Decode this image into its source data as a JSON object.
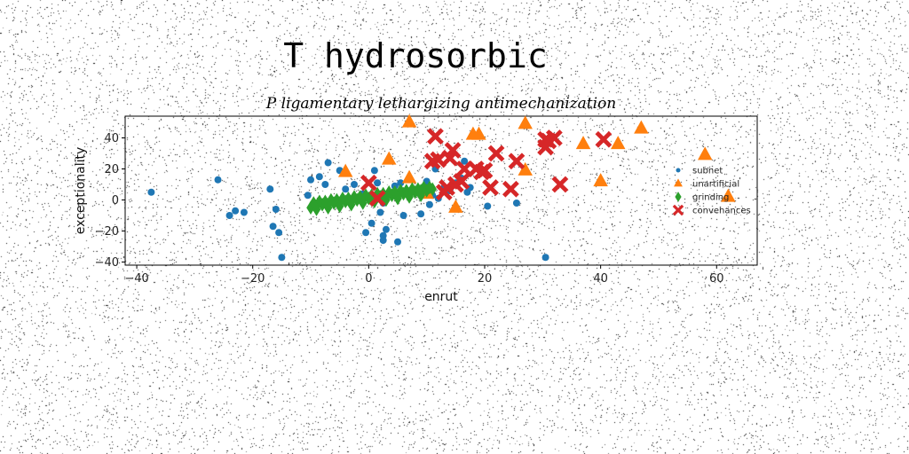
{
  "chart_data": {
    "type": "scatter",
    "suptitle": "T hydrosorbic",
    "title": "P ligamentary lethargizing antimechanization",
    "xlabel": "enrut",
    "ylabel": "exceptionality",
    "xlim": [
      -42,
      67
    ],
    "ylim": [
      -42,
      54
    ],
    "xticks": [
      -40,
      -20,
      0,
      20,
      40,
      60
    ],
    "yticks": [
      -40,
      -20,
      0,
      20,
      40
    ],
    "xtick_labels": [
      "−40",
      "−20",
      "0",
      "20",
      "40",
      "60"
    ],
    "ytick_labels": [
      "−40",
      "−20",
      "0",
      "20",
      "40"
    ],
    "legend_position": "right",
    "series": [
      {
        "name": "subnet",
        "marker": "circle",
        "color": "#1f77b4",
        "points": [
          [
            -37.5,
            5
          ],
          [
            -26,
            13
          ],
          [
            -24,
            -10
          ],
          [
            -23,
            -7
          ],
          [
            -21.5,
            -8
          ],
          [
            -17,
            7
          ],
          [
            -16.5,
            -17
          ],
          [
            -16,
            -6
          ],
          [
            -15.5,
            -21
          ],
          [
            -15,
            -37
          ],
          [
            -10.5,
            3
          ],
          [
            -10,
            13
          ],
          [
            -8.5,
            15
          ],
          [
            -7.5,
            10
          ],
          [
            -7,
            24
          ],
          [
            -5,
            19
          ],
          [
            -4,
            7
          ],
          [
            -2.5,
            10
          ],
          [
            -1,
            4
          ],
          [
            -0.5,
            -21
          ],
          [
            0.5,
            -15
          ],
          [
            1,
            19
          ],
          [
            1.5,
            11
          ],
          [
            2,
            -8
          ],
          [
            2.5,
            -2
          ],
          [
            2.5,
            -23
          ],
          [
            2.5,
            -26
          ],
          [
            3,
            -19
          ],
          [
            4,
            3
          ],
          [
            4.5,
            9
          ],
          [
            5,
            -27
          ],
          [
            5.5,
            11
          ],
          [
            6,
            -10
          ],
          [
            7,
            3
          ],
          [
            8,
            6
          ],
          [
            8.5,
            5
          ],
          [
            9,
            -9
          ],
          [
            10,
            12
          ],
          [
            10.5,
            -3
          ],
          [
            11,
            3
          ],
          [
            11.5,
            20
          ],
          [
            12,
            1
          ],
          [
            13,
            8
          ],
          [
            14,
            6
          ],
          [
            15,
            11
          ],
          [
            16,
            14
          ],
          [
            16.5,
            25
          ],
          [
            17,
            5
          ],
          [
            17.5,
            8
          ],
          [
            20.5,
            -4
          ],
          [
            25.5,
            -2
          ],
          [
            30.5,
            -37
          ]
        ]
      },
      {
        "name": "unartificial",
        "marker": "triangle",
        "color": "#ff7f0e",
        "points": [
          [
            -4,
            18
          ],
          [
            3.5,
            26
          ],
          [
            7,
            50
          ],
          [
            7,
            14
          ],
          [
            10,
            4
          ],
          [
            15,
            -5
          ],
          [
            18,
            42
          ],
          [
            19,
            42
          ],
          [
            27,
            49
          ],
          [
            27,
            19
          ],
          [
            37,
            36
          ],
          [
            40,
            12
          ],
          [
            43,
            36
          ],
          [
            47,
            46
          ],
          [
            58,
            29
          ],
          [
            62,
            2
          ]
        ]
      },
      {
        "name": "grinding",
        "marker": "diamond",
        "color": "#2ca02c",
        "points": [
          [
            -10,
            -5
          ],
          [
            -9,
            -4
          ],
          [
            -8,
            -3
          ],
          [
            -7,
            -3
          ],
          [
            -6,
            -2
          ],
          [
            -5,
            -2
          ],
          [
            -4,
            -1
          ],
          [
            -3,
            -1
          ],
          [
            -2,
            0
          ],
          [
            -1,
            0
          ],
          [
            0,
            1
          ],
          [
            1,
            1
          ],
          [
            2,
            2
          ],
          [
            3,
            2
          ],
          [
            4,
            3
          ],
          [
            5,
            3
          ],
          [
            6,
            4
          ],
          [
            7,
            4
          ],
          [
            8,
            5
          ],
          [
            9,
            6
          ],
          [
            10,
            6
          ],
          [
            11,
            7
          ],
          [
            -9.5,
            -2
          ],
          [
            -8.5,
            -1
          ],
          [
            -7.5,
            -1
          ],
          [
            -6.5,
            0
          ],
          [
            -5.5,
            0
          ],
          [
            -4.5,
            1
          ],
          [
            -3.5,
            1
          ],
          [
            -2.5,
            2
          ],
          [
            -1.5,
            2
          ],
          [
            -0.5,
            3
          ],
          [
            0.5,
            3
          ],
          [
            1.5,
            4
          ],
          [
            2.5,
            4
          ],
          [
            3.5,
            5
          ],
          [
            4.5,
            5
          ],
          [
            5.5,
            6
          ],
          [
            6.5,
            6
          ],
          [
            7.5,
            7
          ],
          [
            8.5,
            7
          ],
          [
            9.5,
            8
          ],
          [
            10.5,
            8
          ],
          [
            -9,
            -6
          ],
          [
            -7,
            -5
          ],
          [
            -5,
            -4
          ],
          [
            -3,
            -3
          ],
          [
            -1,
            -2
          ],
          [
            1,
            -1
          ],
          [
            3,
            0
          ],
          [
            5,
            1
          ],
          [
            7,
            2
          ],
          [
            9,
            3
          ]
        ]
      },
      {
        "name": "convenances",
        "marker": "x",
        "color": "#d62728",
        "points": [
          [
            0,
            11
          ],
          [
            1.5,
            1
          ],
          [
            11,
            25
          ],
          [
            11.5,
            41
          ],
          [
            12,
            26
          ],
          [
            13,
            5
          ],
          [
            13.5,
            8
          ],
          [
            14,
            27
          ],
          [
            14.5,
            32
          ],
          [
            15,
            10
          ],
          [
            16,
            12
          ],
          [
            16.5,
            20
          ],
          [
            18.5,
            20
          ],
          [
            19.5,
            18
          ],
          [
            20,
            19
          ],
          [
            21,
            8
          ],
          [
            22,
            30
          ],
          [
            24.5,
            7
          ],
          [
            25.5,
            25
          ],
          [
            30.5,
            39
          ],
          [
            30.5,
            34
          ],
          [
            31,
            38
          ],
          [
            32,
            40
          ],
          [
            33,
            10
          ],
          [
            40.5,
            39
          ]
        ]
      }
    ]
  }
}
